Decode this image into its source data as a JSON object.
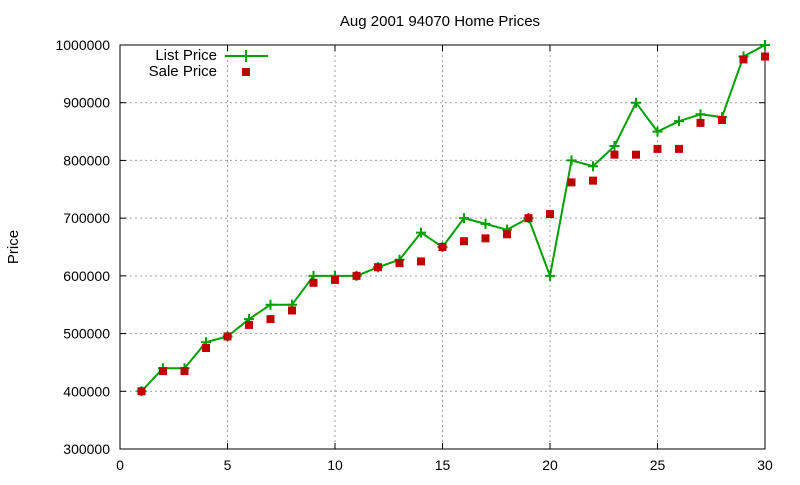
{
  "chart_data": {
    "type": "line",
    "title": "Aug 2001 94070 Home Prices",
    "xlabel": "",
    "ylabel": "Price",
    "xlim": [
      0,
      30
    ],
    "ylim": [
      300000,
      1000000
    ],
    "xticks": [
      0,
      5,
      10,
      15,
      20,
      25,
      30
    ],
    "yticks": [
      300000,
      400000,
      500000,
      600000,
      700000,
      800000,
      900000,
      1000000
    ],
    "grid": true,
    "legend_position": "top-left",
    "x": [
      1,
      2,
      3,
      4,
      5,
      6,
      7,
      8,
      9,
      10,
      11,
      12,
      13,
      14,
      15,
      16,
      17,
      18,
      19,
      20,
      21,
      22,
      23,
      24,
      25,
      26,
      27,
      28,
      29,
      30
    ],
    "series": [
      {
        "name": "List Price",
        "style": "line-with-plus-markers",
        "color": "#00a000",
        "values": [
          400000,
          440000,
          440000,
          485000,
          495000,
          525000,
          550000,
          550000,
          600000,
          600000,
          600000,
          615000,
          628000,
          675000,
          650000,
          700000,
          690000,
          680000,
          700000,
          600000,
          800000,
          790000,
          825000,
          900000,
          850000,
          868000,
          880000,
          875000,
          980000,
          1000000
        ]
      },
      {
        "name": "Sale Price",
        "style": "square-markers",
        "color": "#c00000",
        "values": [
          400000,
          435000,
          435000,
          475000,
          495000,
          515000,
          525000,
          540000,
          588000,
          593000,
          600000,
          615000,
          622000,
          625000,
          650000,
          660000,
          665000,
          672000,
          700000,
          707000,
          762000,
          765000,
          810000,
          810000,
          820000,
          820000,
          865000,
          870000,
          975000,
          980000
        ]
      }
    ]
  }
}
